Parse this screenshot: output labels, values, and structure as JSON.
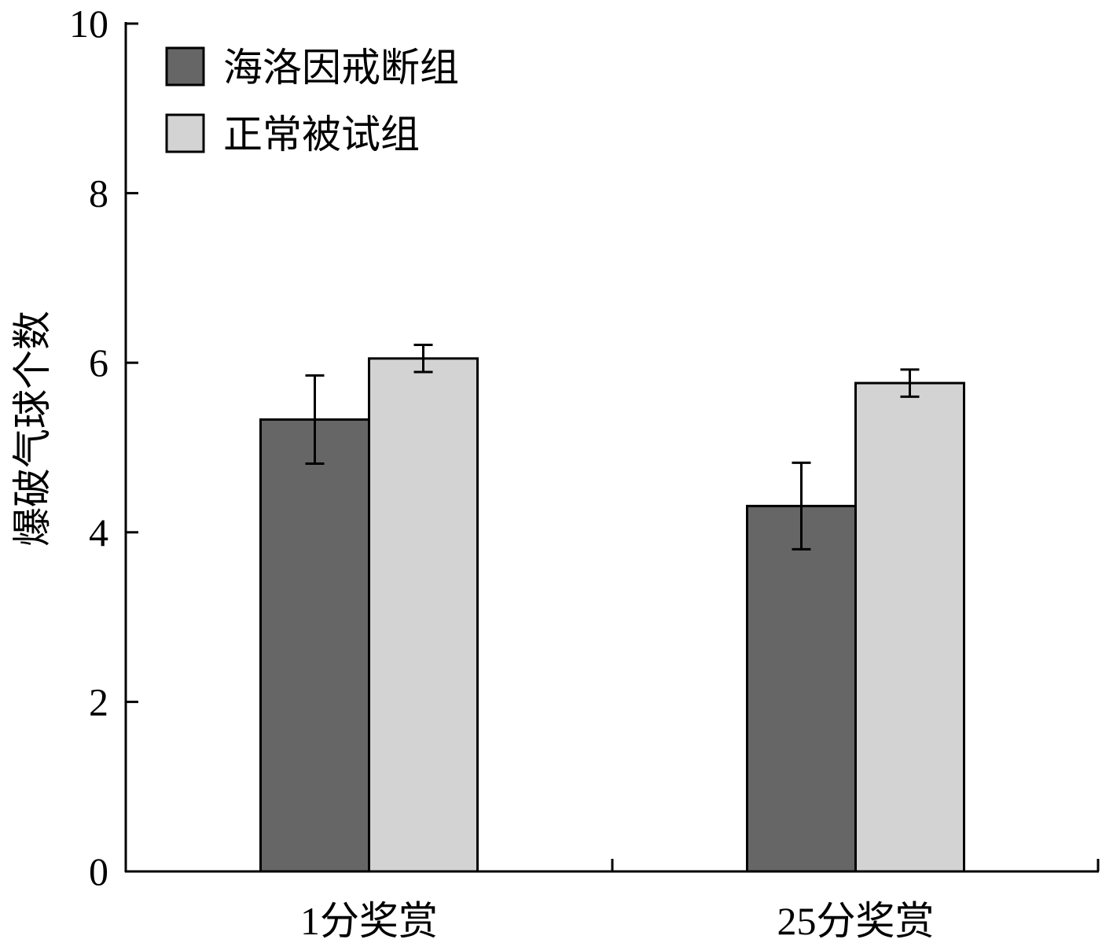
{
  "chart_data": {
    "type": "bar",
    "title": "",
    "xlabel": "",
    "ylabel": "爆破气球个数",
    "ylim": [
      0,
      10
    ],
    "yticks": [
      0,
      2,
      4,
      6,
      8,
      10
    ],
    "categories": [
      "1分奖赏",
      "25分奖赏"
    ],
    "series": [
      {
        "name": "海洛因戒断组",
        "color": "#666666",
        "values": [
          5.33,
          4.31
        ],
        "errors": [
          0.52,
          0.51
        ]
      },
      {
        "name": "正常被试组",
        "color": "#d3d3d3",
        "values": [
          6.05,
          5.76
        ],
        "errors": [
          0.16,
          0.16
        ]
      }
    ],
    "legend_position": "top-left",
    "grid": false
  }
}
